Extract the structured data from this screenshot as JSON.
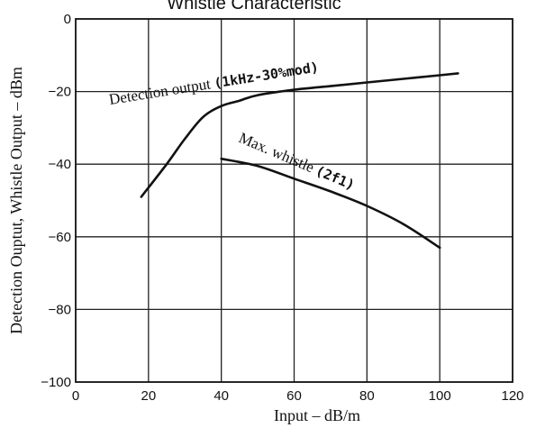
{
  "chart_data": {
    "type": "line",
    "title": "Whistle Characteristic",
    "xlabel": "Input – dB/m",
    "ylabel": "Detection Ouptut, Whistle Output – dBm",
    "xlim": [
      0,
      120
    ],
    "ylim": [
      -100,
      0
    ],
    "x_ticks": [
      0,
      20,
      40,
      60,
      80,
      100,
      120
    ],
    "y_ticks": [
      0,
      -20,
      -40,
      -60,
      -80,
      -100
    ],
    "x_tick_labels": [
      "0",
      "20",
      "40",
      "60",
      "80",
      "100",
      "120"
    ],
    "y_tick_labels": [
      "0",
      "−20",
      "−40",
      "−60",
      "−80",
      "−100"
    ],
    "grid": true,
    "series": [
      {
        "name": "Detection output",
        "label_prefix": "Detection output",
        "label_suffix": "(1kHz-30%mod)",
        "x": [
          18,
          25,
          30,
          35,
          40,
          45,
          50,
          60,
          70,
          80,
          90,
          100,
          105
        ],
        "y": [
          -49,
          -40,
          -33,
          -27,
          -24,
          -22.5,
          -21,
          -19.5,
          -18.5,
          -17.5,
          -16.5,
          -15.5,
          -15
        ]
      },
      {
        "name": "Max. whistle (2f1)",
        "label_prefix": "Max. whistle",
        "label_suffix": "(2f1)",
        "x": [
          40,
          50,
          60,
          70,
          80,
          90,
          100
        ],
        "y": [
          -38.5,
          -40.5,
          -44,
          -47.5,
          -51.5,
          -56.5,
          -63
        ]
      }
    ]
  }
}
